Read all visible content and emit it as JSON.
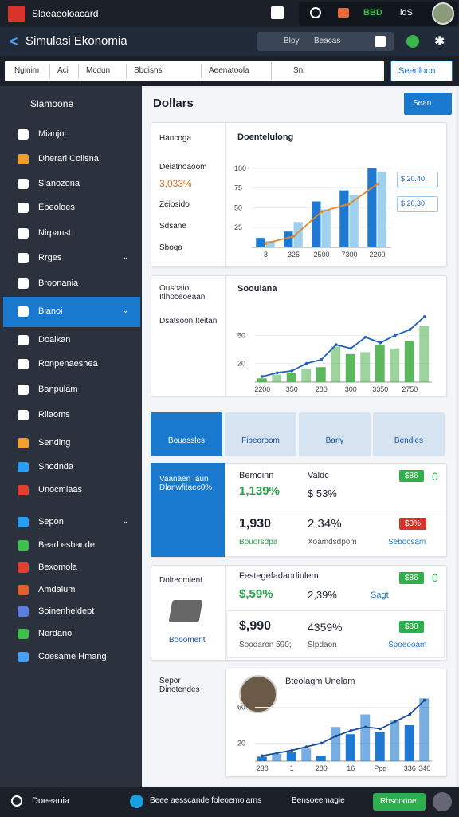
{
  "topbar": {
    "app_name": "Slaeaeoloacard",
    "status": "BBD",
    "label": "idS"
  },
  "header": {
    "title": "Simulasi Ekonomia",
    "search_label": "Bloy",
    "search_placeholder": "Beacas"
  },
  "toolbar": {
    "tabs": [
      "Nginim",
      "Aci",
      "Mcdun",
      "Sbdisns",
      "Aeenatoola"
    ],
    "search": "Sni",
    "button": "Seenloon"
  },
  "sidebar": {
    "heading": "Slamoone",
    "items": [
      "Mianjol",
      "Dherari Colisna",
      "Slanozona",
      "Ebeoloes",
      "Nirpanst",
      "Rrges",
      "Broonania",
      "Bianoi",
      "Doaikan",
      "Ronpenaeshea",
      "Banpulam",
      "Rliaoms",
      "Sending",
      "Snodnda",
      "Unocmlaas",
      "Sepon",
      "Bead eshande",
      "Bexomola",
      "Amdalum",
      "Soinenheldept",
      "Nerdanol",
      "Coesame Hmang"
    ]
  },
  "panel": {
    "title": "Dollars",
    "button": "Sean"
  },
  "card1": {
    "labels": [
      "Hancoga",
      "Deiatnoaoom",
      "3,033%",
      "Zeiosido",
      "Sdsane",
      "Sboqa"
    ],
    "title": "Doentelulong",
    "legend": [
      "$ 20,40",
      "$ 20,30"
    ]
  },
  "card2": {
    "labels": [
      "Ousoaio Itlhoceoeaan",
      "Dsatsoon Iteitan"
    ],
    "title": "Sooulana"
  },
  "tiles": [
    "Bouassles",
    "Fibeoroom",
    "Bariy",
    "Bendles"
  ],
  "stats": {
    "side": "Vaanaen Iaun Dlanwfitaec0%",
    "head1": "Bemoinn",
    "val1": "1,139%",
    "head2": "Valdc",
    "val2": "$ 53%",
    "badge1": "$86",
    "badge1_count": "0",
    "val3": "1,930",
    "sub3": "Bouorsdpa",
    "val4": "2,34%",
    "sub4": "Xoamdsdpom",
    "badge2": "$0%",
    "link": "Sebocsam"
  },
  "product": {
    "side": "Dolreomlent",
    "side_caption": "Boooment",
    "head": "Festegefadaodiulem",
    "val1": "$,59%",
    "val2": "2,39%",
    "link1": "Sagt",
    "badge1": "$86",
    "badge1_count": "0",
    "val3": "$,990",
    "sub3": "Soodaron 590;",
    "val4": "4359%",
    "sub4": "Slpdaon",
    "badge2": "$80",
    "link2": "Spoeooam"
  },
  "card3": {
    "labels": [
      "Sepor Dinotendes"
    ],
    "title": "Bteolagm Unelam"
  },
  "charts": [
    {
      "type": "bar",
      "categories": [
        "8",
        "325",
        "2500",
        "7300",
        "2200"
      ],
      "series": [
        {
          "color": "#1f78d1",
          "values": [
            12,
            20,
            58,
            72,
            100
          ]
        },
        {
          "color": "#9fd0ee",
          "values": [
            8,
            32,
            48,
            66,
            96
          ]
        }
      ],
      "line": {
        "color": "#e08a2a",
        "values": [
          5,
          14,
          45,
          55,
          80
        ]
      },
      "ylim": [
        0,
        110
      ],
      "yticks": [
        25,
        50,
        75,
        100
      ]
    },
    {
      "type": "bar",
      "categories": [
        "2200",
        null,
        "350",
        null,
        "280",
        null,
        "300",
        null,
        "3350",
        null,
        "2750",
        null
      ],
      "series": [
        {
          "color": "#5cb85c",
          "values": [
            4,
            8,
            10,
            14,
            16,
            38,
            30,
            32,
            40,
            36,
            44,
            60
          ]
        }
      ],
      "line": {
        "color": "#1f5fbf",
        "values": [
          6,
          10,
          12,
          20,
          24,
          40,
          36,
          48,
          42,
          50,
          56,
          70
        ]
      },
      "ylim": [
        0,
        75
      ],
      "yticks": [
        20,
        50
      ]
    },
    {
      "type": "bar",
      "categories": [
        "238",
        null,
        "1",
        null,
        "280",
        null,
        "16",
        null,
        "Ppg",
        null,
        "336",
        "340"
      ],
      "series": [
        {
          "color": "#1f78d1",
          "values": [
            5,
            8,
            10,
            14,
            6,
            38,
            30,
            52,
            32,
            45,
            40,
            70
          ]
        }
      ],
      "line": {
        "color": "#1a4d9c",
        "values": [
          6,
          9,
          12,
          16,
          20,
          28,
          34,
          38,
          36,
          44,
          52,
          68
        ]
      },
      "ylim": [
        0,
        80
      ],
      "yticks": [
        20,
        60
      ]
    }
  ],
  "bottombar": {
    "left": "Doeeaoia",
    "info": "Beee aesscande foleoemolarns",
    "middle": "Bensoeemagie",
    "button": "Rhsooooe"
  }
}
